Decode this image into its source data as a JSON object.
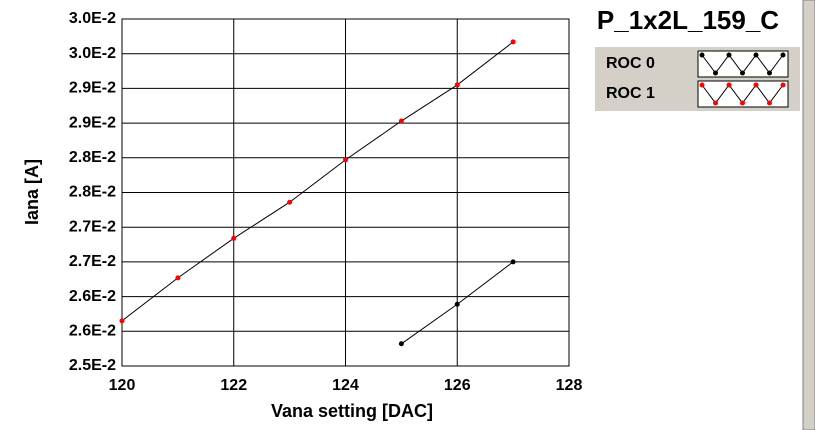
{
  "chart_data": {
    "type": "line",
    "title": "P_1x2L_159_C",
    "x_label": "Vana setting [DAC]",
    "y_label": "Iana [A]",
    "x": [
      120,
      121,
      122,
      123,
      124,
      125,
      126,
      127
    ],
    "series": [
      {
        "name": "ROC 0",
        "color": "#000000",
        "values": [
          null,
          null,
          null,
          null,
          null,
          0.02532,
          0.02589,
          0.0265
        ]
      },
      {
        "name": "ROC 1",
        "color": "#ff0000",
        "values": [
          0.02565,
          0.02627,
          0.02684,
          0.02736,
          0.02797,
          0.02853,
          0.02905,
          0.02967
        ]
      }
    ],
    "xlim": [
      120,
      128
    ],
    "xticks": [
      120,
      122,
      124,
      126,
      128
    ],
    "ylim": [
      0.025,
      0.03
    ],
    "yticks": [
      {
        "value": 0.025,
        "label": "2.5E-2"
      },
      {
        "value": 0.0255,
        "label": "2.6E-2"
      },
      {
        "value": 0.026,
        "label": "2.6E-2"
      },
      {
        "value": 0.0265,
        "label": "2.7E-2"
      },
      {
        "value": 0.027,
        "label": "2.7E-2"
      },
      {
        "value": 0.0275,
        "label": "2.8E-2"
      },
      {
        "value": 0.028,
        "label": "2.8E-2"
      },
      {
        "value": 0.0285,
        "label": "2.9E-2"
      },
      {
        "value": 0.029,
        "label": "2.9E-2"
      },
      {
        "value": 0.0295,
        "label": "3.0E-2"
      },
      {
        "value": 0.03,
        "label": "3.0E-2"
      }
    ],
    "grid": true
  }
}
